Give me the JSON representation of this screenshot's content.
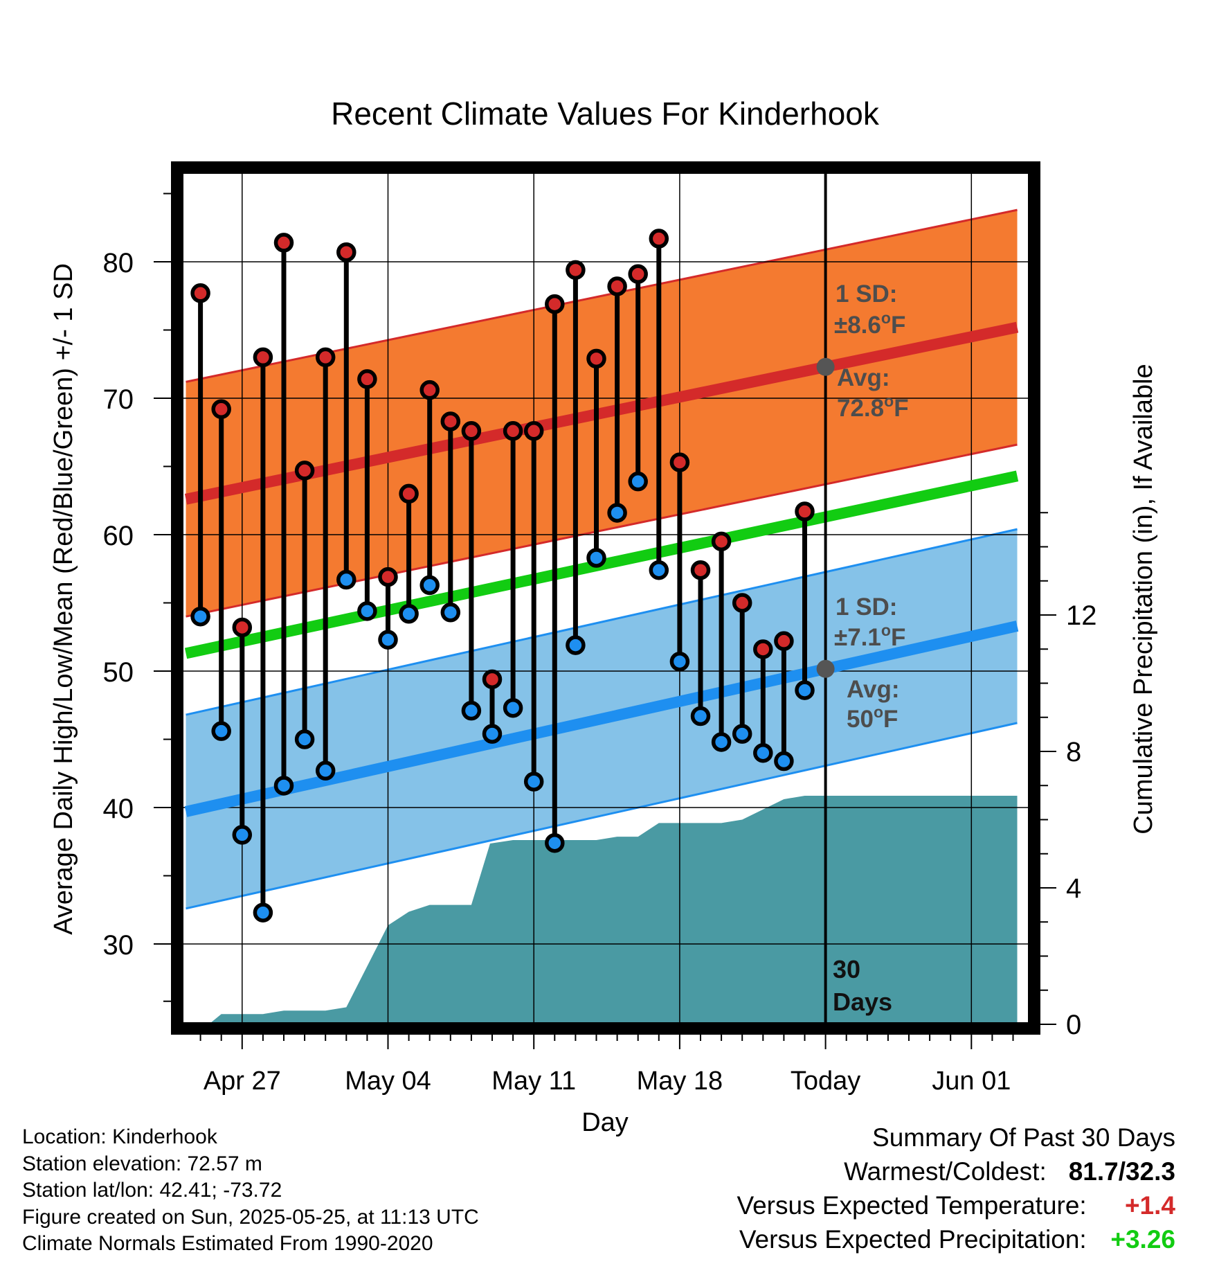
{
  "chart_data": {
    "type": "line",
    "title": "Recent Climate Values For Kinderhook",
    "xlabel": "Day",
    "ylabel": "Average Daily High/Low/Mean (Red/Blue/Green) +/- 1 SD",
    "y2label": "Cumulative Precipitation (in), If Available",
    "ylim": [
      25,
      87
    ],
    "y2lim": [
      0,
      31
    ],
    "x_ticks": [
      {
        "day": 0,
        "label": "Apr 27"
      },
      {
        "day": 7,
        "label": "May 04"
      },
      {
        "day": 14,
        "label": "May 11"
      },
      {
        "day": 21,
        "label": "May 18"
      },
      {
        "day": 28,
        "label": "Today"
      },
      {
        "day": 35,
        "label": "Jun 01"
      }
    ],
    "y_ticks": [
      30,
      40,
      50,
      60,
      70,
      80
    ],
    "y2_ticks": [
      0,
      4,
      8,
      12
    ],
    "today_day": 28,
    "daily": [
      {
        "day": -2,
        "high": 77.7,
        "low": 54.0
      },
      {
        "day": -1,
        "high": 69.2,
        "low": 45.6
      },
      {
        "day": 0,
        "high": 53.2,
        "low": 38.0
      },
      {
        "day": 1,
        "high": 73.0,
        "low": 32.3
      },
      {
        "day": 2,
        "high": 81.4,
        "low": 41.6
      },
      {
        "day": 3,
        "high": 64.7,
        "low": 45.0
      },
      {
        "day": 4,
        "high": 73.0,
        "low": 42.7
      },
      {
        "day": 5,
        "high": 80.7,
        "low": 56.7
      },
      {
        "day": 6,
        "high": 71.4,
        "low": 54.4
      },
      {
        "day": 7,
        "high": 56.9,
        "low": 52.3
      },
      {
        "day": 8,
        "high": 63.0,
        "low": 54.2
      },
      {
        "day": 9,
        "high": 70.6,
        "low": 56.3
      },
      {
        "day": 10,
        "high": 68.3,
        "low": 54.3
      },
      {
        "day": 11,
        "high": 67.6,
        "low": 47.1
      },
      {
        "day": 12,
        "high": 49.4,
        "low": 45.4
      },
      {
        "day": 13,
        "high": 67.6,
        "low": 47.3
      },
      {
        "day": 14,
        "high": 67.6,
        "low": 41.9
      },
      {
        "day": 15,
        "high": 76.9,
        "low": 37.4
      },
      {
        "day": 16,
        "high": 79.4,
        "low": 51.9
      },
      {
        "day": 17,
        "high": 72.9,
        "low": 58.3
      },
      {
        "day": 18,
        "high": 78.2,
        "low": 61.6
      },
      {
        "day": 19,
        "high": 79.1,
        "low": 63.9
      },
      {
        "day": 20,
        "high": 81.7,
        "low": 57.4
      },
      {
        "day": 21,
        "high": 65.3,
        "low": 50.7
      },
      {
        "day": 22,
        "high": 57.4,
        "low": 46.7
      },
      {
        "day": 23,
        "high": 59.5,
        "low": 44.8
      },
      {
        "day": 24,
        "high": 55.0,
        "low": 45.4
      },
      {
        "day": 25,
        "high": 51.6,
        "low": 44.0
      },
      {
        "day": 26,
        "high": 52.2,
        "low": 43.4
      },
      {
        "day": 27,
        "high": 61.7,
        "low": 48.6
      }
    ],
    "normal_high": {
      "start": {
        "day": -2.7,
        "value": 62.6
      },
      "end": {
        "day": 37.2,
        "value": 75.2
      },
      "sd": 8.6
    },
    "normal_low": {
      "start": {
        "day": -2.7,
        "value": 39.7
      },
      "end": {
        "day": 37.2,
        "value": 53.3
      },
      "sd": 7.1
    },
    "normal_mean": {
      "start": {
        "day": -2.7,
        "value": 51.3
      },
      "end": {
        "day": 37.2,
        "value": 64.3
      }
    },
    "precip_cumulative": [
      {
        "day": -1.6,
        "value": 0.0
      },
      {
        "day": -1.0,
        "value": 0.3
      },
      {
        "day": 0.0,
        "value": 0.3
      },
      {
        "day": 1.0,
        "value": 0.3
      },
      {
        "day": 2.0,
        "value": 0.4
      },
      {
        "day": 3.0,
        "value": 0.4
      },
      {
        "day": 4.0,
        "value": 0.4
      },
      {
        "day": 5.0,
        "value": 0.5
      },
      {
        "day": 6.0,
        "value": 1.7
      },
      {
        "day": 7.0,
        "value": 2.9
      },
      {
        "day": 8.0,
        "value": 3.3
      },
      {
        "day": 9.0,
        "value": 3.5
      },
      {
        "day": 10.0,
        "value": 3.5
      },
      {
        "day": 11.0,
        "value": 3.5
      },
      {
        "day": 11.9,
        "value": 5.3
      },
      {
        "day": 13.0,
        "value": 5.4
      },
      {
        "day": 14.0,
        "value": 5.4
      },
      {
        "day": 15.0,
        "value": 5.4
      },
      {
        "day": 16.0,
        "value": 5.4
      },
      {
        "day": 17.0,
        "value": 5.4
      },
      {
        "day": 18.0,
        "value": 5.5
      },
      {
        "day": 19.0,
        "value": 5.5
      },
      {
        "day": 20.0,
        "value": 5.9
      },
      {
        "day": 21.0,
        "value": 5.9
      },
      {
        "day": 22.0,
        "value": 5.9
      },
      {
        "day": 23.0,
        "value": 5.9
      },
      {
        "day": 24.0,
        "value": 6.0
      },
      {
        "day": 25.0,
        "value": 6.3
      },
      {
        "day": 26.0,
        "value": 6.6
      },
      {
        "day": 27.0,
        "value": 6.7
      },
      {
        "day": 28.0,
        "value": 6.7
      },
      {
        "day": 37.2,
        "value": 6.7
      }
    ],
    "annotations": {
      "high_sd_label": "1 SD:",
      "high_sd_value": "±8.6",
      "high_avg_label": "Avg:",
      "high_avg_value": "72.8",
      "low_sd_label": "1 SD:",
      "low_sd_value": "±7.1",
      "low_avg_label": "Avg:",
      "low_avg_value": "50",
      "deg_unit": "o",
      "f_unit": "F",
      "days_count": "30",
      "days_word": "Days"
    },
    "colors": {
      "high_band": "#f47a30",
      "high_line": "#d42a2a",
      "low_band": "#85c2e8",
      "low_line": "#1e8ff0",
      "mean_line": "#12cc12",
      "precip": "#4a9aa3",
      "high_dot": "#d42a2a",
      "low_dot": "#1e8ff0",
      "annotation": "#4d4d4d"
    }
  },
  "info": {
    "location": "Location: Kinderhook",
    "elevation": "Station elevation: 72.57 m",
    "latlon": "Station lat/lon: 42.41; -73.72",
    "created": "Figure created on Sun, 2025-05-25, at 11:13 UTC",
    "normals": "Climate Normals Estimated From 1990-2020"
  },
  "summary": {
    "title": "Summary Of Past 30 Days",
    "warmest_label": "Warmest/Coldest:",
    "warmest_value": "81.7/32.3",
    "temp_label": "Versus Expected Temperature:",
    "temp_value": "+1.4",
    "temp_color": "#d42a2a",
    "precip_label": "Versus Expected Precipitation:",
    "precip_value": "+3.26",
    "precip_color": "#12cc12"
  }
}
